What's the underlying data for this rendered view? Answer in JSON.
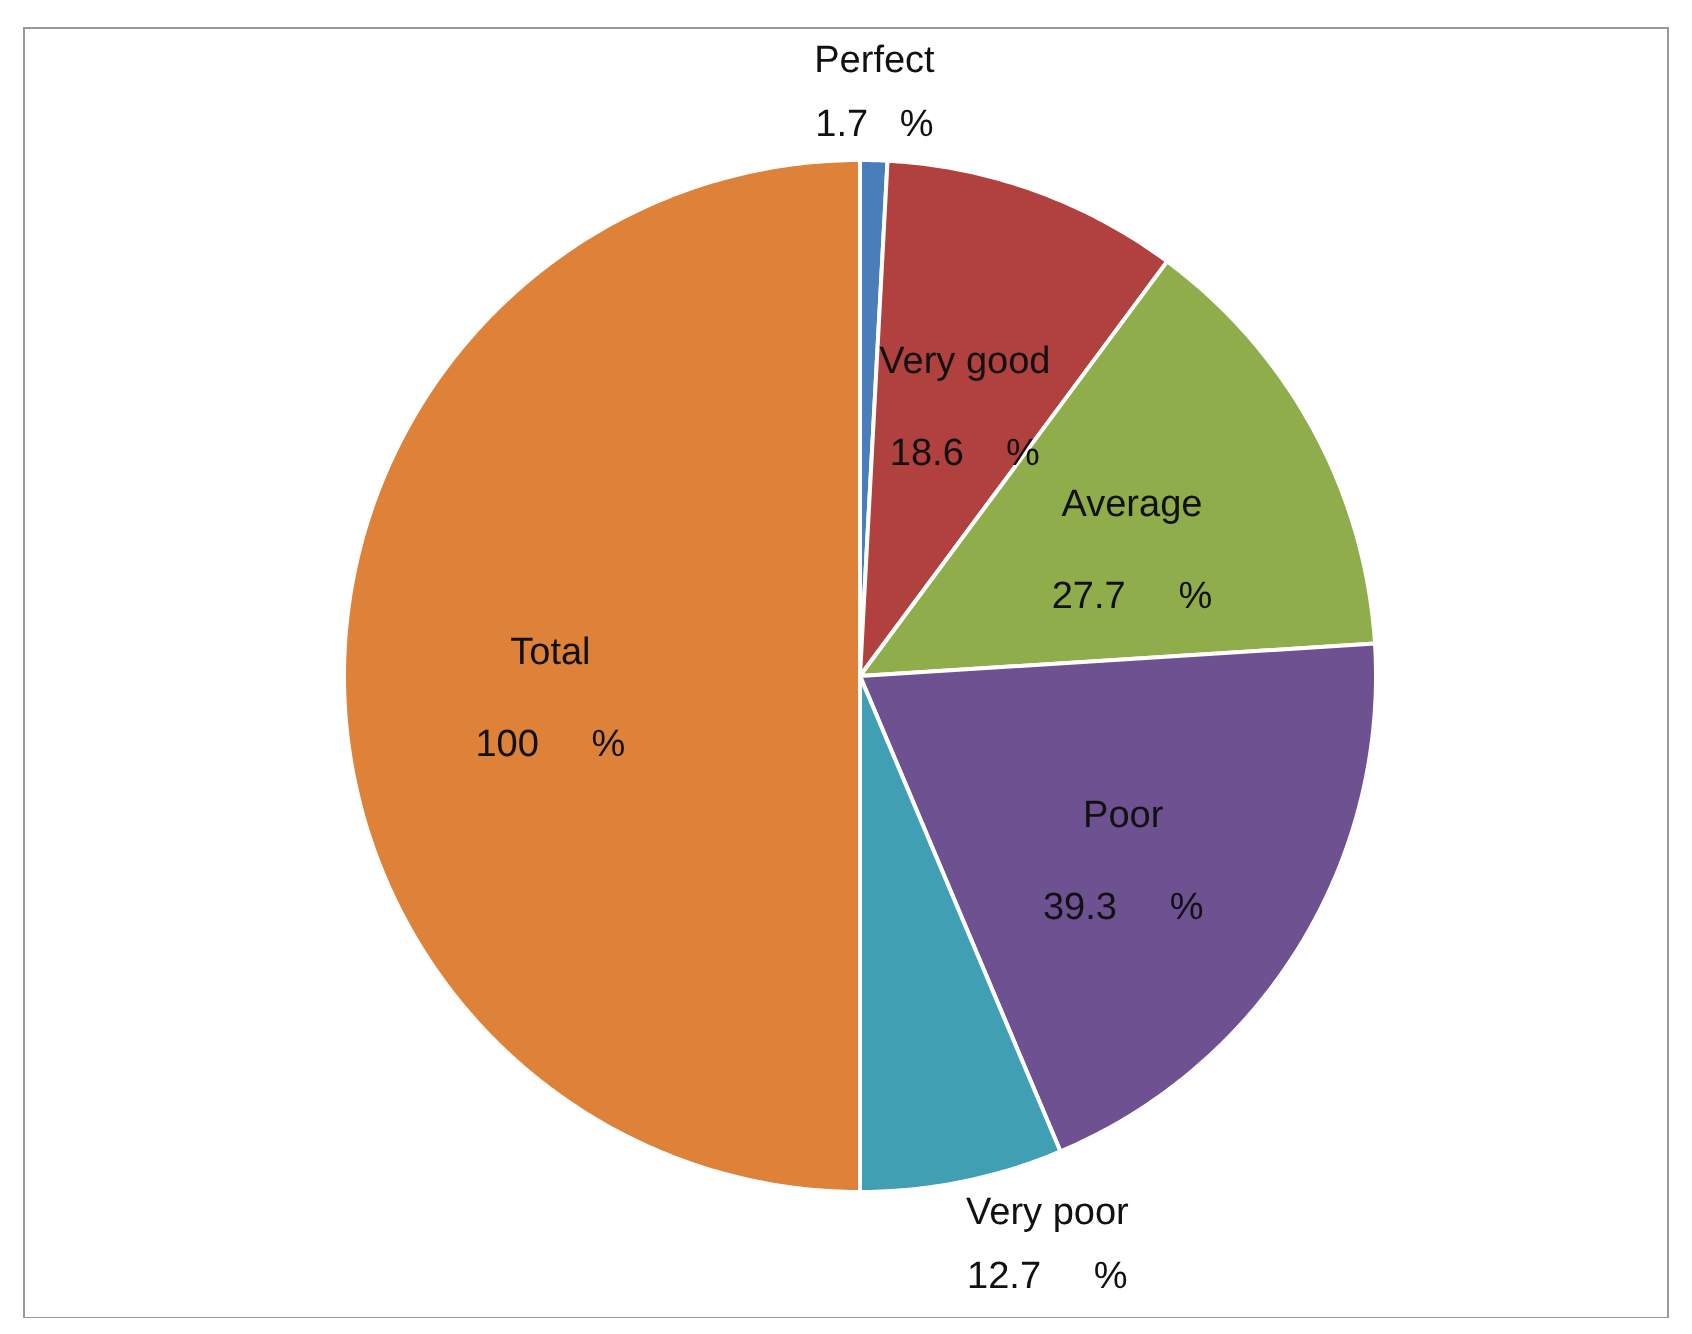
{
  "chart_data": {
    "type": "pie",
    "categories": [
      "Perfect",
      "Very good",
      "Average",
      "Poor",
      "Very poor",
      "Total"
    ],
    "values": [
      1.7,
      18.6,
      27.7,
      39.3,
      12.7,
      100
    ],
    "colors": [
      "#4a7ebb",
      "#b0413e",
      "#8fad4b",
      "#6e5191",
      "#419fb4",
      "#de8139"
    ],
    "value_labels": [
      "1.7   %",
      "18.6    %",
      "27.7     %",
      "39.3     %",
      "12.7     %",
      "100     %"
    ],
    "legend": false
  }
}
